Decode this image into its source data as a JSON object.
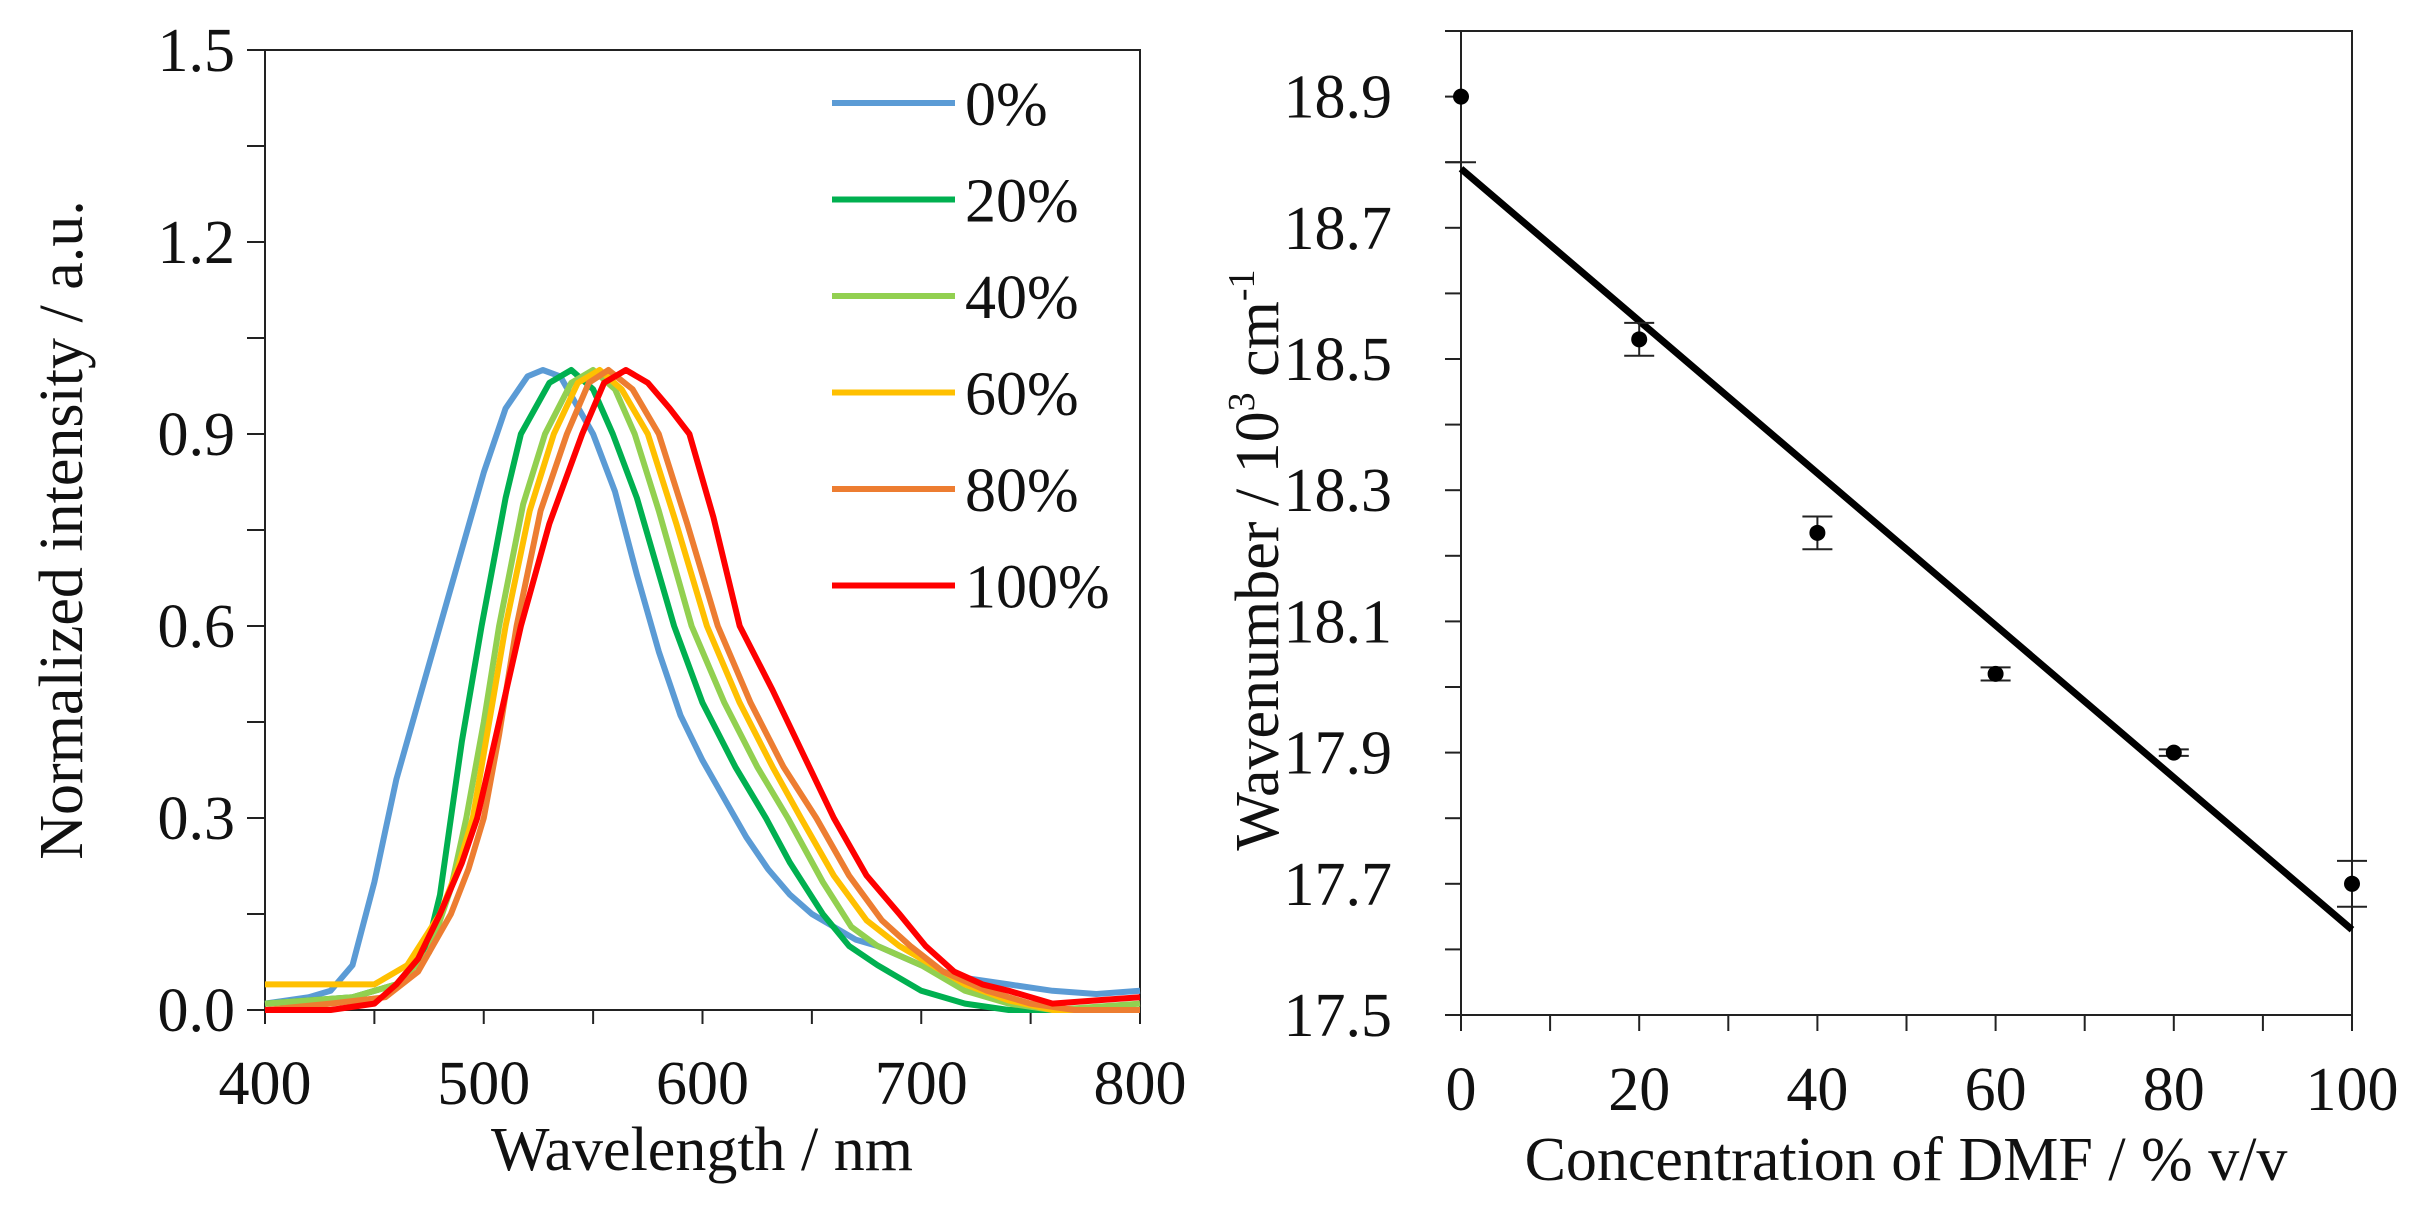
{
  "chart_data": [
    {
      "type": "line",
      "xlabel": "Wavelength / nm",
      "ylabel": "Normalized intensity / a.u.",
      "xlim": [
        400,
        800
      ],
      "ylim": [
        0,
        1.5
      ],
      "xticks": [
        "400",
        "500",
        "600",
        "700",
        "800"
      ],
      "yticks": [
        "0.0",
        "0.3",
        "0.6",
        "0.9",
        "1.2",
        "1.5"
      ],
      "grid": false,
      "legend_position": "top-right",
      "series": [
        {
          "name": "0%",
          "color": "#5B9BD5",
          "points": [
            [
              400,
              0.01
            ],
            [
              420,
              0.02
            ],
            [
              430,
              0.03
            ],
            [
              440,
              0.07
            ],
            [
              450,
              0.2
            ],
            [
              455,
              0.28
            ],
            [
              460,
              0.36
            ],
            [
              470,
              0.48
            ],
            [
              480,
              0.6
            ],
            [
              490,
              0.72
            ],
            [
              500,
              0.84
            ],
            [
              510,
              0.94
            ],
            [
              520,
              0.99
            ],
            [
              527,
              1.0
            ],
            [
              535,
              0.99
            ],
            [
              540,
              0.96
            ],
            [
              550,
              0.9
            ],
            [
              560,
              0.81
            ],
            [
              570,
              0.68
            ],
            [
              580,
              0.56
            ],
            [
              590,
              0.46
            ],
            [
              600,
              0.39
            ],
            [
              610,
              0.33
            ],
            [
              620,
              0.27
            ],
            [
              630,
              0.22
            ],
            [
              640,
              0.18
            ],
            [
              650,
              0.15
            ],
            [
              660,
              0.13
            ],
            [
              670,
              0.11
            ],
            [
              680,
              0.1
            ],
            [
              700,
              0.07
            ],
            [
              720,
              0.05
            ],
            [
              740,
              0.04
            ],
            [
              760,
              0.03
            ],
            [
              780,
              0.025
            ],
            [
              800,
              0.03
            ]
          ]
        },
        {
          "name": "20%",
          "color": "#00B050",
          "points": [
            [
              400,
              0.01
            ],
            [
              440,
              0.02
            ],
            [
              460,
              0.04
            ],
            [
              470,
              0.08
            ],
            [
              475,
              0.11
            ],
            [
              480,
              0.18
            ],
            [
              485,
              0.3
            ],
            [
              490,
              0.42
            ],
            [
              499,
              0.6
            ],
            [
              510,
              0.8
            ],
            [
              517,
              0.9
            ],
            [
              530,
              0.98
            ],
            [
              540,
              1.0
            ],
            [
              550,
              0.97
            ],
            [
              559,
              0.9
            ],
            [
              570,
              0.8
            ],
            [
              587,
              0.6
            ],
            [
              600,
              0.48
            ],
            [
              615,
              0.38
            ],
            [
              629,
              0.3
            ],
            [
              640,
              0.23
            ],
            [
              655,
              0.15
            ],
            [
              667,
              0.1
            ],
            [
              680,
              0.07
            ],
            [
              700,
              0.03
            ],
            [
              720,
              0.01
            ],
            [
              740,
              0.0
            ],
            [
              800,
              0.0
            ]
          ]
        },
        {
          "name": "40%",
          "color": "#92D050",
          "points": [
            [
              400,
              0.01
            ],
            [
              440,
              0.02
            ],
            [
              460,
              0.04
            ],
            [
              475,
              0.09
            ],
            [
              485,
              0.19
            ],
            [
              492,
              0.3
            ],
            [
              500,
              0.45
            ],
            [
              507,
              0.6
            ],
            [
              518,
              0.79
            ],
            [
              528,
              0.9
            ],
            [
              540,
              0.98
            ],
            [
              550,
              1.0
            ],
            [
              560,
              0.97
            ],
            [
              569,
              0.9
            ],
            [
              580,
              0.78
            ],
            [
              595,
              0.6
            ],
            [
              610,
              0.48
            ],
            [
              625,
              0.38
            ],
            [
              639,
              0.3
            ],
            [
              655,
              0.2
            ],
            [
              668,
              0.13
            ],
            [
              680,
              0.1
            ],
            [
              700,
              0.07
            ],
            [
              720,
              0.03
            ],
            [
              740,
              0.01
            ],
            [
              760,
              0.0
            ],
            [
              800,
              0.01
            ]
          ]
        },
        {
          "name": "60%",
          "color": "#FFC000",
          "points": [
            [
              400,
              0.04
            ],
            [
              420,
              0.04
            ],
            [
              450,
              0.04
            ],
            [
              465,
              0.07
            ],
            [
              480,
              0.15
            ],
            [
              488,
              0.22
            ],
            [
              495,
              0.3
            ],
            [
              502,
              0.44
            ],
            [
              510,
              0.6
            ],
            [
              521,
              0.78
            ],
            [
              532,
              0.9
            ],
            [
              543,
              0.98
            ],
            [
              553,
              1.0
            ],
            [
              563,
              0.97
            ],
            [
              575,
              0.9
            ],
            [
              588,
              0.76
            ],
            [
              602,
              0.6
            ],
            [
              617,
              0.48
            ],
            [
              632,
              0.38
            ],
            [
              645,
              0.3
            ],
            [
              660,
              0.21
            ],
            [
              675,
              0.14
            ],
            [
              690,
              0.1
            ],
            [
              705,
              0.07
            ],
            [
              720,
              0.04
            ],
            [
              740,
              0.015
            ],
            [
              760,
              0.0
            ],
            [
              800,
              0.0
            ]
          ]
        },
        {
          "name": "80%",
          "color": "#ED7D31",
          "points": [
            [
              400,
              0.0
            ],
            [
              430,
              0.01
            ],
            [
              455,
              0.02
            ],
            [
              470,
              0.06
            ],
            [
              485,
              0.15
            ],
            [
              493,
              0.22
            ],
            [
              500,
              0.3
            ],
            [
              507,
              0.43
            ],
            [
              515,
              0.6
            ],
            [
              526,
              0.78
            ],
            [
              538,
              0.9
            ],
            [
              548,
              0.98
            ],
            [
              557,
              1.0
            ],
            [
              568,
              0.97
            ],
            [
              580,
              0.9
            ],
            [
              593,
              0.76
            ],
            [
              607,
              0.6
            ],
            [
              622,
              0.48
            ],
            [
              637,
              0.38
            ],
            [
              652,
              0.3
            ],
            [
              667,
              0.21
            ],
            [
              682,
              0.14
            ],
            [
              695,
              0.1
            ],
            [
              710,
              0.06
            ],
            [
              730,
              0.03
            ],
            [
              750,
              0.01
            ],
            [
              770,
              0.0
            ],
            [
              800,
              0.0
            ]
          ]
        },
        {
          "name": "100%",
          "color": "#FF0000",
          "points": [
            [
              400,
              0.0
            ],
            [
              430,
              0.0
            ],
            [
              450,
              0.01
            ],
            [
              460,
              0.04
            ],
            [
              470,
              0.08
            ],
            [
              480,
              0.15
            ],
            [
              490,
              0.23
            ],
            [
              497,
              0.3
            ],
            [
              507,
              0.45
            ],
            [
              517,
              0.6
            ],
            [
              530,
              0.76
            ],
            [
              545,
              0.9
            ],
            [
              555,
              0.98
            ],
            [
              565,
              1.0
            ],
            [
              575,
              0.98
            ],
            [
              585,
              0.94
            ],
            [
              594,
              0.9
            ],
            [
              605,
              0.77
            ],
            [
              617,
              0.6
            ],
            [
              632,
              0.5
            ],
            [
              646,
              0.4
            ],
            [
              660,
              0.3
            ],
            [
              675,
              0.21
            ],
            [
              690,
              0.15
            ],
            [
              702,
              0.1
            ],
            [
              715,
              0.06
            ],
            [
              728,
              0.04
            ],
            [
              740,
              0.03
            ],
            [
              760,
              0.01
            ],
            [
              780,
              0.015
            ],
            [
              800,
              0.02
            ]
          ]
        }
      ]
    },
    {
      "type": "scatter",
      "xlabel": "Concentration of DMF / % v/v",
      "ylabel": "Wavenumber  / 10³ cm⁻¹",
      "ylabel_parts": {
        "main": "Wavenumber  / 10",
        "sup1": "3",
        "unit": " cm",
        "sup2": "-1"
      },
      "xlim": [
        0,
        100
      ],
      "ylim": [
        17.5,
        19.0
      ],
      "xticks": [
        "0",
        "20",
        "40",
        "60",
        "80",
        "100"
      ],
      "yticks": [
        "17.5",
        "17.7",
        "17.9",
        "18.1",
        "18.3",
        "18.5",
        "18.7",
        "18.9"
      ],
      "grid": false,
      "points": [
        {
          "x": 0,
          "y": 18.9,
          "err": 0.1
        },
        {
          "x": 20,
          "y": 18.53,
          "err": 0.025
        },
        {
          "x": 40,
          "y": 18.235,
          "err": 0.025
        },
        {
          "x": 60,
          "y": 18.02,
          "err": 0.01
        },
        {
          "x": 80,
          "y": 17.9,
          "err": 0.005
        },
        {
          "x": 100,
          "y": 17.7,
          "err": 0.035
        }
      ],
      "fit_line": {
        "x": [
          0,
          100
        ],
        "y": [
          18.79,
          17.63
        ]
      }
    }
  ]
}
